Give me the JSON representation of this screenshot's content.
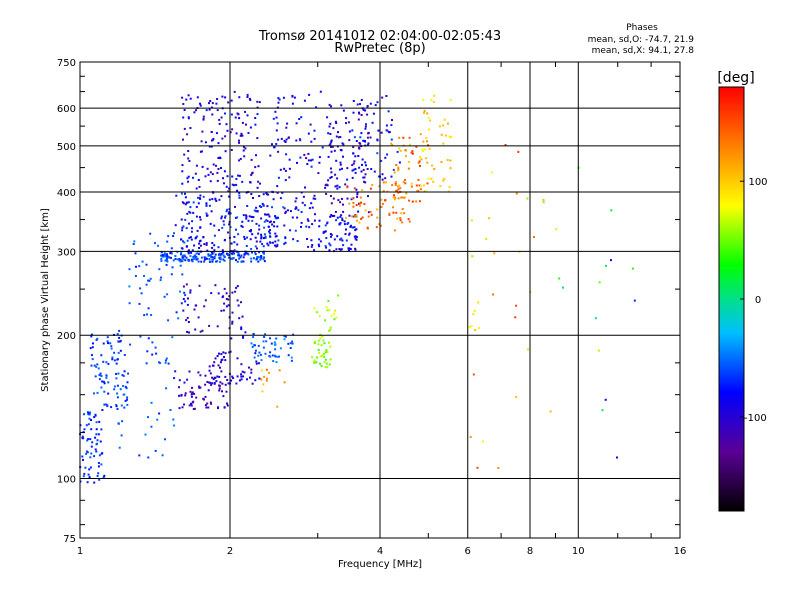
{
  "chart_data": {
    "type": "scatter",
    "title": "Tromsø 20141012 02:04:00-02:05:43",
    "subtitle": "RwPretec (8p)",
    "xlabel": "Frequency [MHz]",
    "ylabel": "Stationary phase Virtual Height [km]",
    "x_scale": "log",
    "y_scale": "log",
    "xlim": [
      1,
      16
    ],
    "ylim": [
      75,
      750
    ],
    "x_ticks": [
      1,
      2,
      4,
      6,
      8,
      10,
      16
    ],
    "x_tick_labels": [
      "1",
      "2",
      "4",
      "6",
      "8",
      "10",
      "16"
    ],
    "y_ticks": [
      75,
      100,
      200,
      300,
      400,
      500,
      600,
      750
    ],
    "y_tick_labels": [
      "75",
      "100",
      "200",
      "300",
      "400",
      "500",
      "600",
      "750"
    ],
    "grid": true,
    "stats": {
      "heading": "Phases",
      "line_o": "mean, sd,O: -74.7, 21.9",
      "line_x": "mean, sd,X:  94.1, 27.8"
    },
    "colorbar": {
      "label": "[deg]",
      "range": [
        -180,
        180
      ],
      "ticks": [
        100,
        0,
        -100
      ],
      "tick_labels": [
        "100",
        "0",
        "-100"
      ]
    },
    "clusters": [
      {
        "f": [
          1.0,
          1.12
        ],
        "h": [
          98,
          140
        ],
        "p": [
          -85,
          -55
        ],
        "n": 70
      },
      {
        "f": [
          1.05,
          1.25
        ],
        "h": [
          140,
          205
        ],
        "p": [
          -80,
          -50
        ],
        "n": 90
      },
      {
        "f": [
          1.15,
          1.55
        ],
        "h": [
          110,
          200
        ],
        "p": [
          -75,
          -45
        ],
        "n": 40
      },
      {
        "f": [
          1.25,
          1.65
        ],
        "h": [
          215,
          330
        ],
        "p": [
          -75,
          -45
        ],
        "n": 55
      },
      {
        "f": [
          1.45,
          2.35
        ],
        "h": [
          285,
          300
        ],
        "p": [
          -80,
          -45
        ],
        "n": 180
      },
      {
        "f": [
          1.55,
          2.5
        ],
        "h": [
          300,
          400
        ],
        "p": [
          -110,
          -55
        ],
        "n": 200
      },
      {
        "f": [
          1.6,
          2.3
        ],
        "h": [
          400,
          650
        ],
        "p": [
          -125,
          -70
        ],
        "n": 160
      },
      {
        "f": [
          1.55,
          2.0
        ],
        "h": [
          140,
          170
        ],
        "p": [
          -130,
          -95
        ],
        "n": 70
      },
      {
        "f": [
          1.8,
          2.3
        ],
        "h": [
          158,
          185
        ],
        "p": [
          -120,
          -85
        ],
        "n": 60
      },
      {
        "f": [
          1.6,
          2.2
        ],
        "h": [
          195,
          260
        ],
        "p": [
          -125,
          -85
        ],
        "n": 60
      },
      {
        "f": [
          2.2,
          2.7
        ],
        "h": [
          175,
          205
        ],
        "p": [
          -70,
          -40
        ],
        "n": 50
      },
      {
        "f": [
          2.3,
          2.6
        ],
        "h": [
          140,
          170
        ],
        "p": [
          90,
          140
        ],
        "n": 12
      },
      {
        "f": [
          2.2,
          3.0
        ],
        "h": [
          300,
          400
        ],
        "p": [
          -115,
          -55
        ],
        "n": 90
      },
      {
        "f": [
          2.4,
          3.1
        ],
        "h": [
          400,
          650
        ],
        "p": [
          -120,
          -65
        ],
        "n": 70
      },
      {
        "f": [
          2.9,
          3.2
        ],
        "h": [
          170,
          200
        ],
        "p": [
          40,
          70
        ],
        "n": 35
      },
      {
        "f": [
          2.95,
          3.3
        ],
        "h": [
          200,
          245
        ],
        "p": [
          45,
          85
        ],
        "n": 18
      },
      {
        "f": [
          3.0,
          3.6
        ],
        "h": [
          300,
          360
        ],
        "p": [
          -110,
          -60
        ],
        "n": 80
      },
      {
        "f": [
          3.1,
          3.8
        ],
        "h": [
          360,
          620
        ],
        "p": [
          -130,
          -70
        ],
        "n": 120
      },
      {
        "f": [
          3.4,
          4.6
        ],
        "h": [
          330,
          420
        ],
        "p": [
          100,
          160
        ],
        "n": 70
      },
      {
        "f": [
          3.5,
          4.4
        ],
        "h": [
          420,
          640
        ],
        "p": [
          -120,
          -60
        ],
        "n": 60
      },
      {
        "f": [
          4.2,
          5.0
        ],
        "h": [
          380,
          520
        ],
        "p": [
          95,
          170
        ],
        "n": 60
      },
      {
        "f": [
          4.8,
          5.6
        ],
        "h": [
          400,
          640
        ],
        "p": [
          75,
          120
        ],
        "n": 45
      },
      {
        "f": [
          6.0,
          6.4
        ],
        "h": [
          200,
          320
        ],
        "p": [
          70,
          110
        ],
        "n": 8
      },
      {
        "f": [
          6.0,
          9.0
        ],
        "h": [
          100,
          600
        ],
        "p": [
          40,
          160
        ],
        "n": 25
      },
      {
        "f": [
          9.0,
          13.5
        ],
        "h": [
          100,
          600
        ],
        "p": [
          -100,
          100
        ],
        "n": 15
      }
    ]
  }
}
